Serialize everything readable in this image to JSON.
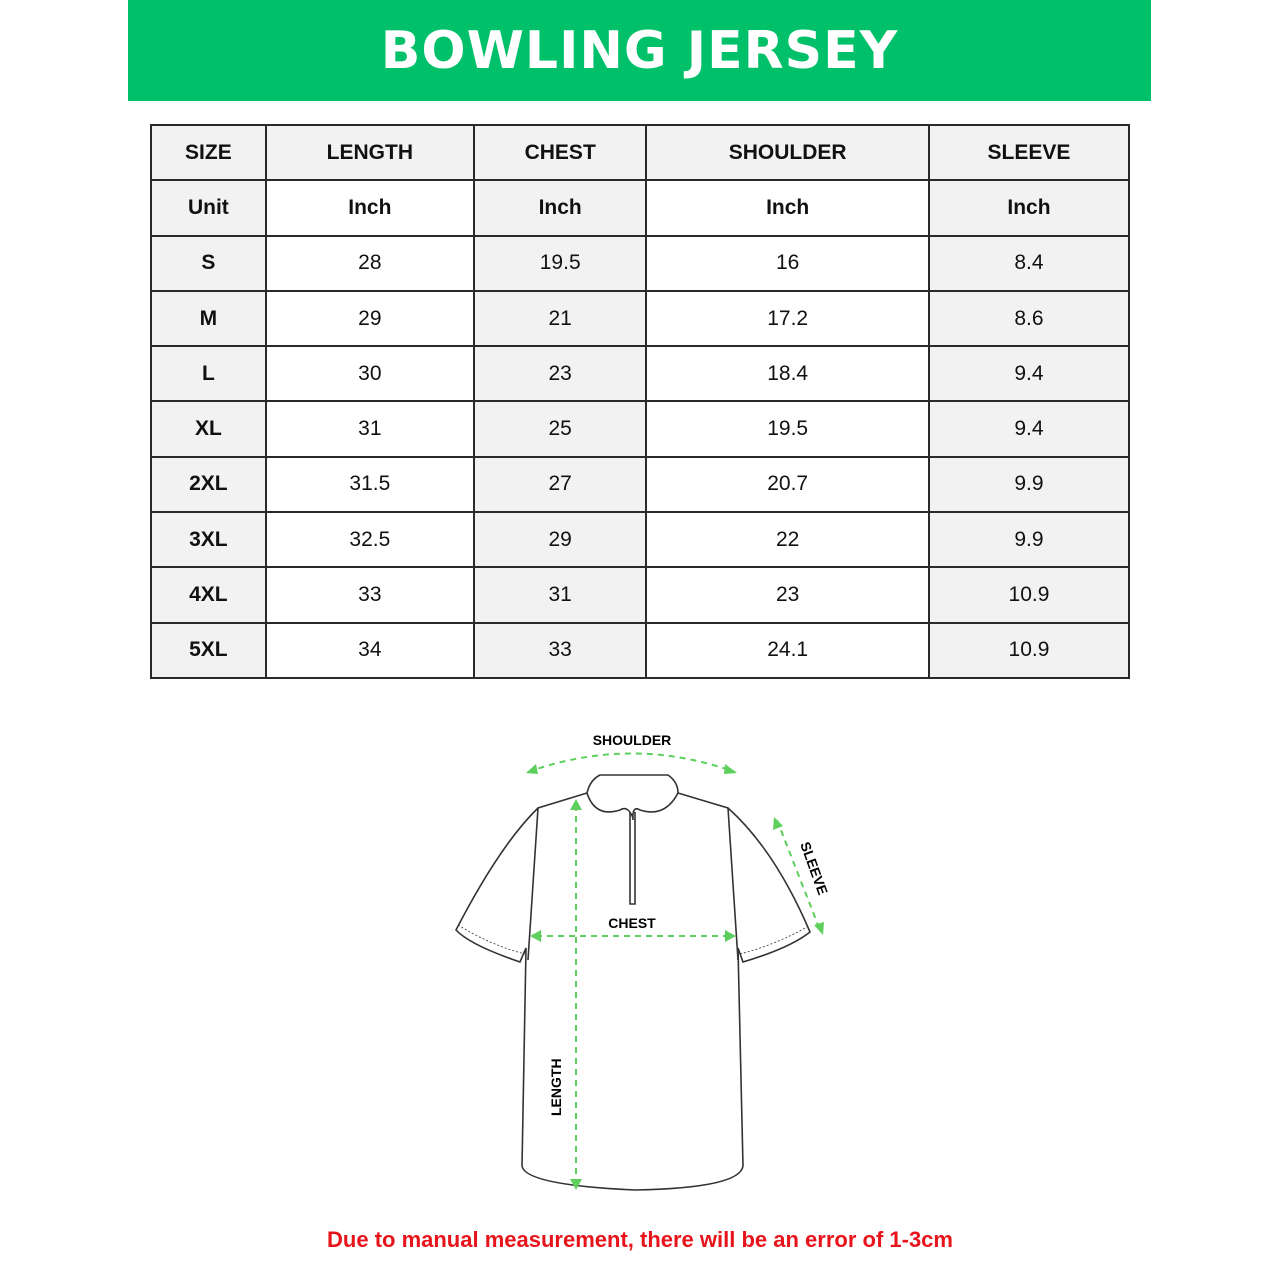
{
  "title": "BOWLING JERSEY",
  "table": {
    "headers": [
      "SIZE",
      "LENGTH",
      "CHEST",
      "SHOULDER",
      "SLEEVE"
    ],
    "unit_row": [
      "Unit",
      "Inch",
      "Inch",
      "Inch",
      "Inch"
    ],
    "rows": [
      [
        "S",
        "28",
        "19.5",
        "16",
        "8.4"
      ],
      [
        "M",
        "29",
        "21",
        "17.2",
        "8.6"
      ],
      [
        "L",
        "30",
        "23",
        "18.4",
        "9.4"
      ],
      [
        "XL",
        "31",
        "25",
        "19.5",
        "9.4"
      ],
      [
        "2XL",
        "31.5",
        "27",
        "20.7",
        "9.9"
      ],
      [
        "3XL",
        "32.5",
        "29",
        "22",
        "9.9"
      ],
      [
        "4XL",
        "33",
        "31",
        "23",
        "10.9"
      ],
      [
        "5XL",
        "34",
        "33",
        "24.1",
        "10.9"
      ]
    ]
  },
  "diagram": {
    "shoulder": "SHOULDER",
    "sleeve": "SLEEVE",
    "chest": "CHEST",
    "length": "LENGTH",
    "arrow_color": "#5ccf5c"
  },
  "note": "Due to manual measurement, there will be an error of 1-3cm",
  "colors": {
    "banner": "#00c06a",
    "note": "#e8141b"
  }
}
